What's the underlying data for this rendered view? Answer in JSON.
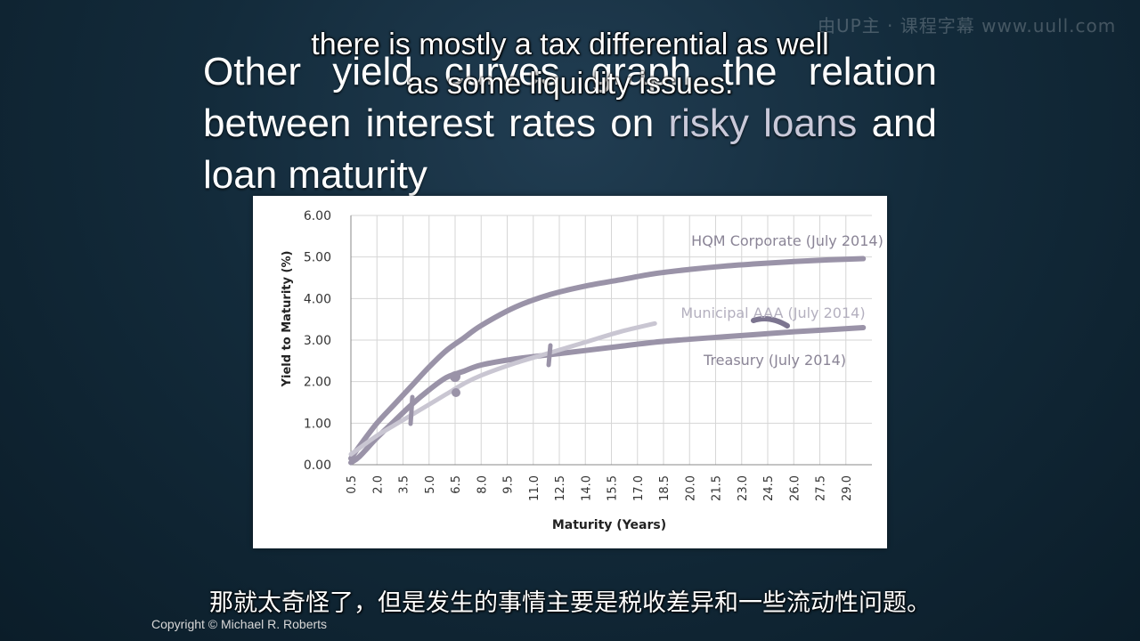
{
  "slide": {
    "title_part1": "Other yield curves graph the relation between interest rates on ",
    "title_accent": "risky loans",
    "title_part2": " and loan maturity"
  },
  "subtitles": {
    "english": "there is mostly a tax differential as well as some liquidity issues.",
    "chinese": "那就太奇怪了，但是发生的事情主要是税收差异和一些流动性问题。"
  },
  "footer": {
    "copyright": "Copyright © Michael R. Roberts"
  },
  "watermark": "由UP主 · 课程字幕 www.uull.com",
  "chart_data": {
    "type": "line",
    "xlabel": "Maturity (Years)",
    "ylabel": "Yield to Maturity (%)",
    "ylim": [
      0,
      6
    ],
    "yticks": [
      "0.00",
      "1.00",
      "2.00",
      "3.00",
      "4.00",
      "5.00",
      "6.00"
    ],
    "xlim": [
      0.5,
      30.5
    ],
    "xticks": [
      "0.5",
      "2.0",
      "3.5",
      "5.0",
      "6.5",
      "8.0",
      "9.5",
      "11.0",
      "12.5",
      "14.0",
      "15.5",
      "17.0",
      "18.5",
      "20.0",
      "21.5",
      "23.0",
      "24.5",
      "26.0",
      "27.5",
      "29.0"
    ],
    "grid": true,
    "series": [
      {
        "name": "HQM Corporate (July 2014)",
        "color": "#9a93a8",
        "x": [
          0.5,
          1,
          2,
          3,
          4,
          5,
          6,
          7,
          8,
          10,
          12,
          14,
          16,
          18,
          20,
          22,
          24,
          26,
          28,
          30
        ],
        "y": [
          0.15,
          0.45,
          1.0,
          1.45,
          1.9,
          2.35,
          2.75,
          3.05,
          3.35,
          3.8,
          4.1,
          4.3,
          4.45,
          4.6,
          4.7,
          4.78,
          4.84,
          4.89,
          4.93,
          4.96
        ]
      },
      {
        "name": "Treasury (July 2014)",
        "color": "#9a93a8",
        "x": [
          0.5,
          1,
          2,
          3,
          4,
          5,
          6,
          7,
          8,
          10,
          12,
          14,
          16,
          18,
          20,
          22,
          24,
          26,
          28,
          30
        ],
        "y": [
          0.05,
          0.2,
          0.65,
          1.05,
          1.45,
          1.8,
          2.1,
          2.25,
          2.4,
          2.55,
          2.65,
          2.75,
          2.85,
          2.95,
          3.02,
          3.08,
          3.14,
          3.2,
          3.25,
          3.3
        ]
      },
      {
        "name": "Municipal AAA (July 2014)",
        "color": "#c9c6d2",
        "x": [
          0.5,
          1,
          2,
          3,
          4,
          5,
          6,
          7,
          8,
          10,
          12,
          14,
          16,
          18
        ],
        "y": [
          0.25,
          0.4,
          0.7,
          0.95,
          1.2,
          1.45,
          1.7,
          1.95,
          2.15,
          2.45,
          2.7,
          2.95,
          3.2,
          3.4
        ]
      }
    ]
  }
}
